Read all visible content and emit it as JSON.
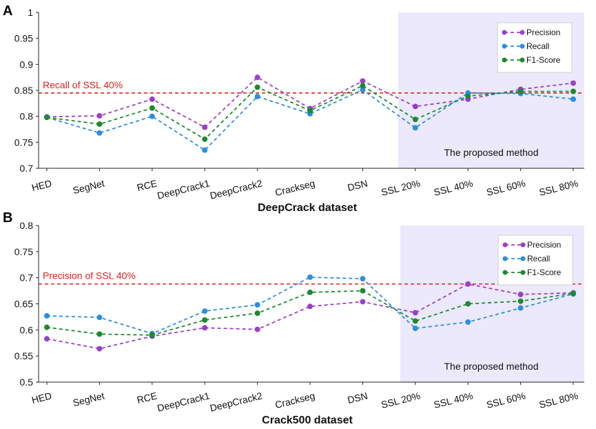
{
  "chart_data": [
    {
      "panel": "A",
      "type": "line",
      "xlabel": "DeepCrack dataset",
      "ylabel": "",
      "ylim": [
        0.7,
        1.0
      ],
      "yticks": [
        0.7,
        0.75,
        0.8,
        0.85,
        0.9,
        0.95,
        1
      ],
      "ytick_labels": [
        "0.7",
        "0.75",
        "0.8",
        "0.85",
        "0.9",
        "0.95",
        "1"
      ],
      "categories": [
        "HED",
        "SegNet",
        "RCE",
        "DeepCrack1",
        "DeepCrack2",
        "Crackseg",
        "DSN",
        "SSL 20%",
        "SSL 40%",
        "SSL 60%",
        "SSL 80%"
      ],
      "series": [
        {
          "name": "Precision",
          "color": "#9b3fc9",
          "values": [
            0.799,
            0.801,
            0.833,
            0.779,
            0.875,
            0.815,
            0.868,
            0.819,
            0.833,
            0.852,
            0.864
          ]
        },
        {
          "name": "Recall",
          "color": "#2a8fe0",
          "values": [
            0.798,
            0.768,
            0.8,
            0.735,
            0.838,
            0.805,
            0.851,
            0.778,
            0.845,
            0.844,
            0.833
          ]
        },
        {
          "name": "F1-Score",
          "color": "#1c8a2e",
          "values": [
            0.798,
            0.785,
            0.816,
            0.756,
            0.856,
            0.811,
            0.859,
            0.794,
            0.839,
            0.848,
            0.848
          ]
        }
      ],
      "reference_line": {
        "label": "Recall of SSL 40%",
        "value": 0.845,
        "color": "#e0201c"
      },
      "shaded_region": {
        "from_category": "SSL 20%",
        "to_category": "SSL 80%",
        "label": "The proposed method",
        "color": "#ebe9fb"
      },
      "legend_position": "top-right"
    },
    {
      "panel": "B",
      "type": "line",
      "xlabel": "Crack500 dataset",
      "ylabel": "",
      "ylim": [
        0.5,
        0.8
      ],
      "yticks": [
        0.5,
        0.55,
        0.6,
        0.65,
        0.7,
        0.75,
        0.8
      ],
      "ytick_labels": [
        "0.5",
        "0.55",
        "0.6",
        "0.65",
        "0.7",
        "0.75",
        "0.8"
      ],
      "categories": [
        "HED",
        "SegNet",
        "RCE",
        "DeepCrack1",
        "DeepCrack2",
        "Crackseg",
        "DSN",
        "SSL 20%",
        "SSL 40%",
        "SSL 60%",
        "SSL 80%"
      ],
      "series": [
        {
          "name": "Precision",
          "color": "#9b3fc9",
          "values": [
            0.583,
            0.564,
            0.588,
            0.604,
            0.601,
            0.645,
            0.654,
            0.633,
            0.688,
            0.668,
            0.671
          ]
        },
        {
          "name": "Recall",
          "color": "#2a8fe0",
          "values": [
            0.627,
            0.624,
            0.593,
            0.636,
            0.648,
            0.701,
            0.698,
            0.603,
            0.615,
            0.642,
            0.669
          ]
        },
        {
          "name": "F1-Score",
          "color": "#1c8a2e",
          "values": [
            0.605,
            0.592,
            0.59,
            0.619,
            0.632,
            0.672,
            0.675,
            0.617,
            0.65,
            0.655,
            0.67
          ]
        }
      ],
      "reference_line": {
        "label": "Precision of SSL 40%",
        "value": 0.688,
        "color": "#e0201c"
      },
      "shaded_region": {
        "from_category": "SSL 20%",
        "to_category": "SSL 80%",
        "label": "The proposed method",
        "color": "#ebe9fb"
      },
      "legend_position": "top-right"
    }
  ]
}
